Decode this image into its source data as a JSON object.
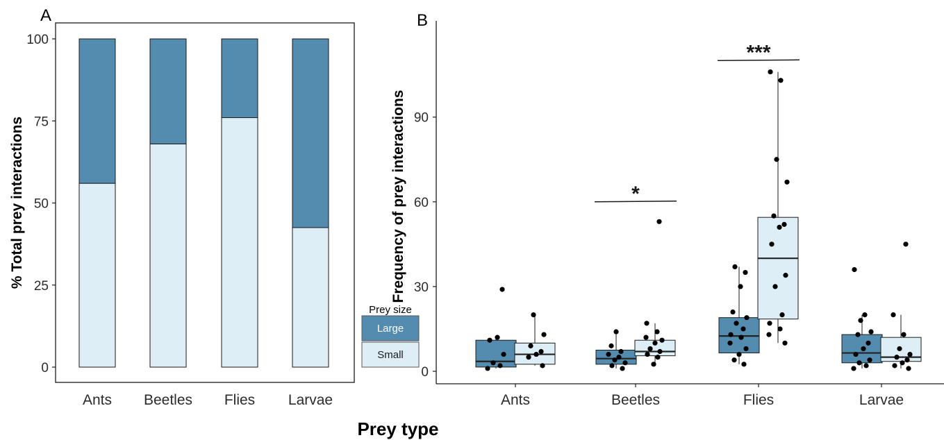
{
  "colors": {
    "large": "#548cb0",
    "small": "#deeef7",
    "outline": "#1a1a1a",
    "point": "#000000"
  },
  "shared_xlabel": "Prey type",
  "legend": {
    "title": "Prey size",
    "items": [
      "Large",
      "Small"
    ]
  },
  "chart_data": [
    {
      "type": "bar",
      "panel_label": "A",
      "stacked": true,
      "categories": [
        "Ants",
        "Beetles",
        "Flies",
        "Larvae"
      ],
      "series": [
        {
          "name": "Small",
          "values": [
            56,
            68,
            76,
            42.5
          ]
        },
        {
          "name": "Large",
          "values": [
            44,
            32,
            24,
            57.5
          ]
        }
      ],
      "ylabel": "% Total prey interactions",
      "ylim": [
        0,
        100
      ],
      "yticks": [
        "0",
        "25",
        "50",
        "75",
        "100"
      ],
      "grid": false
    },
    {
      "type": "box",
      "panel_label": "B",
      "categories": [
        "Ants",
        "Beetles",
        "Flies",
        "Larvae"
      ],
      "ylabel": "Frequency of prey interactions",
      "ylim": [
        -4,
        124
      ],
      "yticks": [
        "0",
        "30",
        "60",
        "90"
      ],
      "grid": false,
      "groups": [
        {
          "category": "Ants",
          "size": "Large",
          "q1": 1.5,
          "median": 3.5,
          "q3": 11,
          "whisker_low": 1,
          "whisker_high": 12,
          "points": [
            1,
            2,
            3,
            6,
            11,
            12,
            29
          ]
        },
        {
          "category": "Ants",
          "size": "Small",
          "q1": 2.5,
          "median": 6,
          "q3": 10,
          "whisker_low": 2,
          "whisker_high": 20,
          "points": [
            2,
            5,
            6,
            7,
            9,
            13,
            20
          ]
        },
        {
          "category": "Beetles",
          "size": "Large",
          "q1": 2.5,
          "median": 4.5,
          "q3": 7.5,
          "whisker_low": 1,
          "whisker_high": 14,
          "points": [
            1,
            2,
            3,
            4,
            5,
            6,
            7,
            9,
            14
          ]
        },
        {
          "category": "Beetles",
          "size": "Small",
          "q1": 5.5,
          "median": 7,
          "q3": 11,
          "whisker_low": 2.5,
          "whisker_high": 17,
          "points": [
            2.5,
            5,
            6,
            7,
            8,
            10,
            11,
            12,
            14,
            17,
            53
          ]
        },
        {
          "category": "Flies",
          "size": "Large",
          "q1": 6.5,
          "median": 12.5,
          "q3": 19,
          "whisker_low": 2.5,
          "whisker_high": 37,
          "points": [
            2.5,
            4,
            6,
            8,
            10,
            12,
            13,
            15,
            17,
            19,
            21,
            30,
            35,
            37
          ]
        },
        {
          "category": "Flies",
          "size": "Small",
          "q1": 18.5,
          "median": 40,
          "q3": 54.5,
          "whisker_low": 10,
          "whisker_high": 106,
          "points": [
            10,
            13,
            15,
            17,
            20,
            30,
            34,
            45,
            51,
            52,
            55,
            67,
            75,
            103,
            106
          ]
        },
        {
          "category": "Larvae",
          "size": "Large",
          "q1": 3,
          "median": 6.5,
          "q3": 13,
          "whisker_low": 1,
          "whisker_high": 20,
          "points": [
            1,
            2,
            3,
            4,
            6,
            8,
            10,
            13,
            14,
            18,
            20,
            36
          ]
        },
        {
          "category": "Larvae",
          "size": "Small",
          "q1": 3.5,
          "median": 5,
          "q3": 12,
          "whisker_low": 1,
          "whisker_high": 20,
          "points": [
            1,
            2,
            3,
            4,
            5,
            6,
            8,
            13,
            20,
            45
          ]
        }
      ],
      "annotations": [
        {
          "category": "Beetles",
          "text": "*",
          "y": 60
        },
        {
          "category": "Flies",
          "text": "***",
          "y": 110
        }
      ]
    }
  ]
}
